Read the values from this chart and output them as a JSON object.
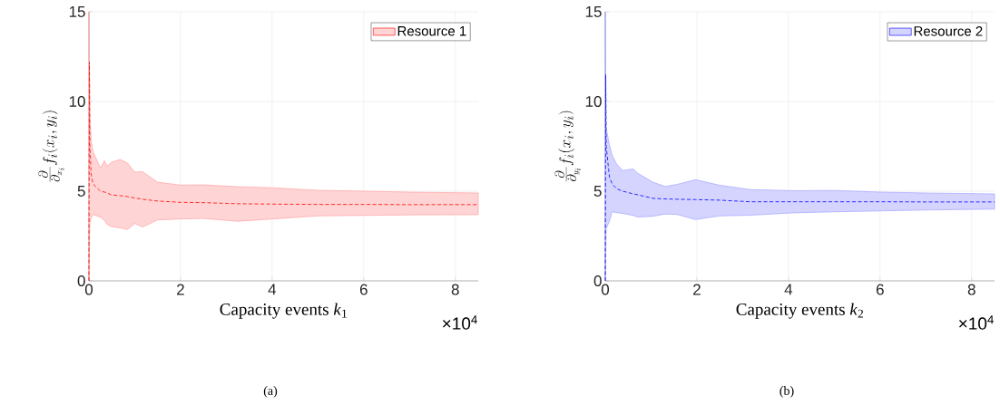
{
  "chart_data": [
    {
      "type": "line",
      "xlabel": "Capacity events *k*$_{1}$",
      "ylabel": "\\frac{\\partial}{\\partial_{x_i}} f_i(x_i, y_i)",
      "xlim": [
        0,
        8.5
      ],
      "ylim": [
        0,
        15
      ],
      "xticks": [
        0,
        2,
        4,
        6,
        8
      ],
      "yticks": [
        0,
        5,
        10,
        15
      ],
      "grid": true,
      "legend": "top right",
      "line_style": "dashed",
      "annotations": [
        "×10$^{4}$",
        "(a)"
      ],
      "series": [
        {
          "name": "Resource 1",
          "color": "#ff0000",
          "x": [
            0,
            0.01,
            0.02,
            0.05,
            0.09,
            0.25,
            0.34,
            0.4,
            0.48,
            0.68,
            0.84,
            1.0,
            1.17,
            1.5,
            2.0,
            2.5,
            3.25,
            4.0,
            5.0,
            6.0,
            7.0,
            8.5
          ],
          "values": [
            0,
            12.2,
            7.5,
            5.9,
            5.4,
            5.0,
            4.95,
            4.9,
            4.8,
            4.75,
            4.7,
            4.62,
            4.55,
            4.45,
            4.38,
            4.36,
            4.3,
            4.28,
            4.26,
            4.26,
            4.25,
            4.25
          ],
          "lower": [
            0,
            2.0,
            3.2,
            3.5,
            3.7,
            3.55,
            3.37,
            3.15,
            3.03,
            2.95,
            2.86,
            3.2,
            3.0,
            3.4,
            3.45,
            3.48,
            3.32,
            3.45,
            3.62,
            3.65,
            3.68,
            3.69
          ],
          "upper": [
            15,
            12,
            9.3,
            7.8,
            7.2,
            6.3,
            6.7,
            6.4,
            6.6,
            6.77,
            6.57,
            6.06,
            6.09,
            5.5,
            5.34,
            5.35,
            5.25,
            5.19,
            5.05,
            5.0,
            4.95,
            4.9
          ]
        }
      ]
    },
    {
      "type": "line",
      "xlabel": "Capacity events *k*$_{2}$",
      "ylabel": "\\frac{\\partial}{\\partial_{y_i}} f_i(x_i, y_i)",
      "xlim": [
        0,
        8.5
      ],
      "ylim": [
        0,
        15
      ],
      "xticks": [
        0,
        2,
        4,
        6,
        8
      ],
      "yticks": [
        0,
        5,
        10,
        15
      ],
      "grid": true,
      "legend": "top right",
      "line_style": "dashed",
      "annotations": [
        "×10$^{4}$",
        "(b)"
      ],
      "series": [
        {
          "name": "Resource 2",
          "color": "#0000ff",
          "x": [
            0,
            0.01,
            0.02,
            0.09,
            0.15,
            0.25,
            0.38,
            0.61,
            0.71,
            1.04,
            1.31,
            1.57,
            1.97,
            2.5,
            3.16,
            4.08,
            5.0,
            6.0,
            7.0,
            8.5
          ],
          "values": [
            0,
            11.5,
            7.5,
            5.8,
            5.4,
            5.13,
            5.0,
            4.85,
            4.8,
            4.6,
            4.57,
            4.55,
            4.53,
            4.5,
            4.41,
            4.41,
            4.41,
            4.41,
            4.4,
            4.4
          ],
          "lower": [
            0,
            1.5,
            2.9,
            3.33,
            3.85,
            3.8,
            3.76,
            3.65,
            3.56,
            3.6,
            3.73,
            3.7,
            3.42,
            3.62,
            3.66,
            3.79,
            3.85,
            3.9,
            3.95,
            4.0
          ],
          "upper": [
            15,
            11,
            8.5,
            7.6,
            7.0,
            6.5,
            6.15,
            6.24,
            6.0,
            5.5,
            5.26,
            5.38,
            5.64,
            5.33,
            5.09,
            5.03,
            5.04,
            4.95,
            4.9,
            4.85
          ]
        }
      ]
    }
  ]
}
